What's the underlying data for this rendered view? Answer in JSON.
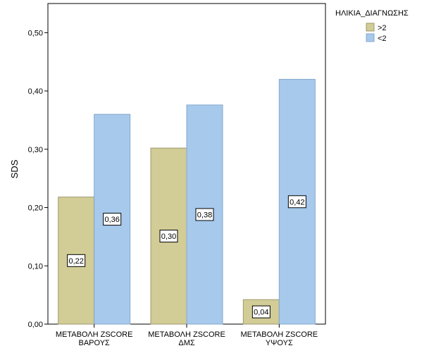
{
  "chart_data": {
    "type": "bar",
    "ylabel": "SDS",
    "ylim": [
      0,
      0.55
    ],
    "y_ticks": [
      0,
      0.1,
      0.2,
      0.3,
      0.4,
      0.5
    ],
    "y_tick_labels": [
      "0,00",
      "0,10",
      "0,20",
      "0,30",
      "0,40",
      "0,50"
    ],
    "categories": [
      [
        "ΜΕΤΑΒΟΛΗ ZSCORE",
        "ΒΑΡΟΥΣ"
      ],
      [
        "ΜΕΤΑΒΟΛΗ ZSCORE",
        "ΔΜΣ"
      ],
      [
        "ΜΕΤΑΒΟΛΗ ZSCORE",
        "ΥΨΟΥΣ"
      ]
    ],
    "legend_title": "ΗΛΙΚΙΑ_ΔΙΑΓΝΩΣΗΣ",
    "legend_position": "top-right outside",
    "grid": false,
    "series": [
      {
        "name": ">2",
        "color": "#D2CC96",
        "values": [
          0.218,
          0.302,
          0.042
        ],
        "labels": [
          "0,22",
          "0,30",
          "0,04"
        ]
      },
      {
        "name": "<2",
        "color": "#A6C9EC",
        "values": [
          0.36,
          0.376,
          0.42
        ],
        "labels": [
          "0,36",
          "0,38",
          "0,42"
        ]
      }
    ]
  }
}
